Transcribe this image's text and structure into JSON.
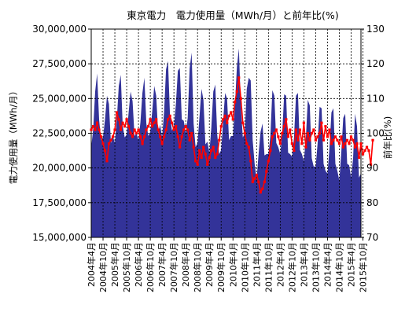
{
  "chart_data": {
    "type": "area",
    "title": "東京電力　電力使用量（MWh/月）と前年比(%)",
    "ylabel": "電力使用量（MWh/月）",
    "y2label": "前年比(%)",
    "ylim": [
      15000000,
      30000000
    ],
    "y2lim": [
      70,
      130
    ],
    "yticks": [
      {
        "value": 15000000,
        "label": "15,000,000"
      },
      {
        "value": 17500000,
        "label": "17,500,000"
      },
      {
        "value": 20000000,
        "label": "20,000,000"
      },
      {
        "value": 22500000,
        "label": "22,500,000"
      },
      {
        "value": 25000000,
        "label": "25,000,000"
      },
      {
        "value": 27500000,
        "label": "27,500,000"
      },
      {
        "value": 30000000,
        "label": "30,000,000"
      }
    ],
    "y2ticks": [
      {
        "value": 70,
        "label": "70"
      },
      {
        "value": 80,
        "label": "80"
      },
      {
        "value": 90,
        "label": "90"
      },
      {
        "value": 100,
        "label": "100"
      },
      {
        "value": 110,
        "label": "110"
      },
      {
        "value": 120,
        "label": "120"
      },
      {
        "value": 130,
        "label": "130"
      }
    ],
    "xticks": [
      "2004年4月",
      "2004年10月",
      "2005年4月",
      "2005年10月",
      "2006年4月",
      "2006年10月",
      "2007年4月",
      "2007年10月",
      "2008年4月",
      "2008年10月",
      "2009年4月",
      "2009年10月",
      "2010年4月",
      "2010年10月",
      "2011年4月",
      "2011年10月",
      "2012年4月",
      "2012年10月",
      "2013年4月",
      "2013年10月",
      "2014年4月",
      "2014年10月",
      "2015年4月",
      "2015年10月"
    ],
    "x_start": "2004-04",
    "grid": true,
    "series": [
      {
        "axis": "left",
        "color": "#333399",
        "values": [
          21500000,
          22800000,
          25500000,
          26800000,
          23500000,
          22000000,
          22200000,
          23500000,
          25200000,
          24600000,
          21800000,
          22300000,
          21800000,
          23500000,
          25900000,
          26700000,
          23000000,
          22200000,
          22400000,
          24000000,
          25500000,
          24800000,
          22300000,
          22500000,
          22000000,
          23300000,
          25400000,
          26500000,
          23200000,
          22300000,
          22600000,
          24100000,
          25900000,
          25200000,
          22500000,
          23100000,
          22200000,
          24000000,
          27100000,
          27700000,
          23800000,
          22700000,
          23000000,
          24600000,
          27000000,
          27200000,
          23500000,
          23400000,
          22500000,
          23600000,
          27200000,
          28300000,
          23200000,
          21500000,
          21800000,
          23700000,
          25700000,
          24900000,
          21700000,
          21900000,
          21100000,
          22900000,
          25500000,
          26000000,
          22400000,
          21000000,
          21300000,
          23400000,
          25400000,
          25000000,
          22000000,
          22300000,
          22300000,
          24500000,
          27300000,
          28600000,
          24400000,
          22200000,
          22500000,
          25700000,
          26500000,
          26300000,
          22000000,
          20300000,
          19200000,
          21000000,
          22600000,
          23200000,
          20900000,
          21000000,
          21000000,
          22300000,
          25600000,
          25200000,
          21800000,
          21500000,
          21000000,
          22500000,
          25300000,
          25200000,
          21100000,
          21000000,
          20800000,
          22200000,
          25200000,
          25400000,
          21300000,
          21000000,
          20500000,
          22100000,
          24900000,
          24500000,
          20700000,
          20100000,
          20100000,
          21800000,
          24400000,
          24300000,
          20300000,
          19800000,
          19600000,
          21400000,
          24000000,
          24300000,
          20300000,
          19800000,
          19100000,
          21100000,
          23600000,
          23900000,
          20300000,
          20200000,
          19300000,
          20700000,
          23900000,
          23000000,
          19300000,
          19600000
        ]
      },
      {
        "axis": "right",
        "color": "#ff0000",
        "values": [
          101,
          102,
          101,
          103,
          101,
          99,
          97,
          95,
          92,
          97,
          98,
          99,
          101,
          106,
          104,
          101,
          103,
          102,
          104,
          102,
          100,
          99,
          101,
          100,
          101,
          99,
          97,
          99,
          101,
          102,
          104,
          102,
          103,
          104,
          101,
          99,
          97,
          99,
          101,
          104,
          105,
          103,
          101,
          102,
          99,
          96,
          99,
          101,
          102,
          101,
          98,
          100,
          96,
          92,
          91,
          95,
          93,
          96,
          94,
          91,
          93,
          95,
          96,
          93,
          94,
          98,
          102,
          104,
          105,
          103,
          105,
          106,
          104,
          109,
          112,
          116,
          110,
          103,
          100,
          97,
          96,
          92,
          86,
          87,
          88,
          86,
          83,
          84,
          86,
          89,
          92,
          95,
          99,
          100,
          101,
          99,
          97,
          100,
          102,
          104,
          99,
          101,
          97,
          95,
          101,
          98,
          101,
          97,
          103,
          96,
          100,
          98,
          100,
          101,
          98,
          99,
          100,
          103,
          98,
          102,
          99,
          101,
          97,
          98,
          99,
          98,
          97,
          99,
          96,
          97,
          98,
          97,
          99,
          98,
          96,
          97,
          93,
          97,
          94,
          95,
          96,
          95,
          91,
          98
        ]
      }
    ]
  }
}
